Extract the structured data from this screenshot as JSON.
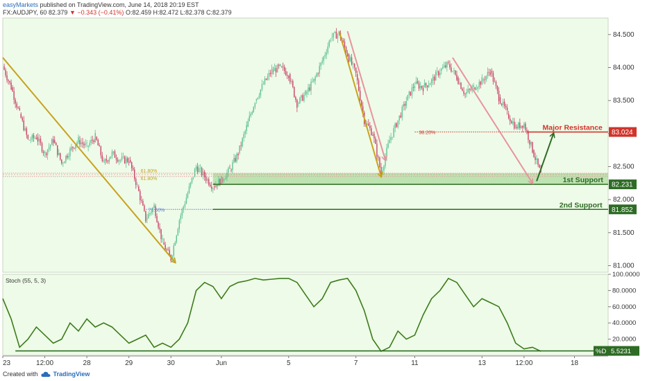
{
  "header": {
    "brand": "easyMarkets",
    "published": "published on TradingView.com, June 14, 2018 20:19 EST",
    "symbol": "FX:AUDJPY, 60",
    "last": "82.379",
    "change": "−0.343 (−0.41%)",
    "ohlc": "O:82.459 H:82.472 L:82.378 C:82.379"
  },
  "footer": {
    "created_with": "Created with",
    "brand": "TradingView"
  },
  "colors": {
    "background": "#eefbe8",
    "candle_up": "#5fc196",
    "candle_down": "#c9446a",
    "gold_arrow": "#c8a21e",
    "pink_arrow": "#e8939e",
    "resistance": "#d0342c",
    "support": "#2e6b25",
    "stoch_line": "#3c7a1a"
  },
  "chart_data": [
    {
      "type": "candlestick",
      "title": "",
      "ylim": [
        80.9,
        84.75
      ],
      "y_ticks": [
        "84.500",
        "84.000",
        "83.500",
        "83.000",
        "82.500",
        "82.000",
        "81.500",
        "81.000"
      ],
      "x_ticks": [
        "23",
        "12:00",
        "28",
        "29",
        "30",
        "Jun",
        "5",
        "7",
        "11",
        "13",
        "12:00",
        "18"
      ],
      "x_tick_positions": [
        0,
        5,
        10,
        15,
        20,
        26,
        34,
        42,
        49,
        57,
        62,
        68
      ],
      "x_range": [
        0,
        72
      ],
      "price_path": [
        [
          0,
          84.02
        ],
        [
          1,
          83.7
        ],
        [
          2,
          83.3
        ],
        [
          3,
          82.9
        ],
        [
          4,
          82.95
        ],
        [
          5,
          82.7
        ],
        [
          6,
          82.9
        ],
        [
          7,
          82.55
        ],
        [
          8,
          82.75
        ],
        [
          9,
          82.9
        ],
        [
          10,
          82.8
        ],
        [
          11,
          82.95
        ],
        [
          12,
          82.55
        ],
        [
          13,
          82.7
        ],
        [
          14,
          82.6
        ],
        [
          15,
          82.6
        ],
        [
          16,
          82.2
        ],
        [
          17,
          81.7
        ],
        [
          18,
          81.9
        ],
        [
          19,
          81.35
        ],
        [
          20,
          81.1
        ],
        [
          21,
          81.7
        ],
        [
          22,
          82.1
        ],
        [
          23,
          82.5
        ],
        [
          24,
          82.35
        ],
        [
          25,
          82.2
        ],
        [
          26,
          82.3
        ],
        [
          27,
          82.45
        ],
        [
          28,
          82.7
        ],
        [
          29,
          83.1
        ],
        [
          30,
          83.5
        ],
        [
          31,
          83.75
        ],
        [
          32,
          83.95
        ],
        [
          33,
          84.0
        ],
        [
          34,
          83.9
        ],
        [
          35,
          83.45
        ],
        [
          36,
          83.6
        ],
        [
          37,
          83.8
        ],
        [
          38,
          84.1
        ],
        [
          39,
          84.45
        ],
        [
          40,
          84.52
        ],
        [
          41,
          84.2
        ],
        [
          42,
          83.9
        ],
        [
          43,
          83.2
        ],
        [
          44,
          83.0
        ],
        [
          45,
          82.4
        ],
        [
          46,
          82.9
        ],
        [
          47,
          83.2
        ],
        [
          48,
          83.5
        ],
        [
          49,
          83.75
        ],
        [
          50,
          83.7
        ],
        [
          51,
          83.8
        ],
        [
          52,
          83.95
        ],
        [
          53,
          84.05
        ],
        [
          54,
          83.85
        ],
        [
          55,
          83.6
        ],
        [
          56,
          83.7
        ],
        [
          57,
          83.8
        ],
        [
          58,
          83.95
        ],
        [
          59,
          83.55
        ],
        [
          60,
          83.3
        ],
        [
          61,
          83.1
        ],
        [
          62,
          83.15
        ],
        [
          63,
          82.75
        ],
        [
          64,
          82.38
        ]
      ],
      "fib_levels": [
        {
          "label": "61.80%",
          "value": 82.4
        },
        {
          "label": "61.80%",
          "value": 82.35
        },
        {
          "label": "38.20%",
          "value": 83.024
        },
        {
          "label": "78.60%",
          "value": 81.852
        }
      ],
      "levels": [
        {
          "name": "Major Resistance",
          "value": 83.024,
          "price_label": "83.024"
        },
        {
          "name": "1st Support",
          "value": 82.231,
          "price_label": "82.231"
        },
        {
          "name": "2nd Support",
          "value": 81.852,
          "price_label": "81.852"
        }
      ],
      "last_price": 82.379,
      "arrows": [
        {
          "color": "gold",
          "from": [
            0,
            84.15
          ],
          "to": [
            20.5,
            81.05
          ]
        },
        {
          "color": "gold",
          "from": [
            40,
            84.55
          ],
          "to": [
            45,
            82.35
          ]
        },
        {
          "color": "pink",
          "from": [
            41,
            84.55
          ],
          "to": [
            45.5,
            82.6
          ]
        },
        {
          "color": "pink",
          "from": [
            53.5,
            84.15
          ],
          "to": [
            63,
            82.25
          ]
        },
        {
          "color": "green",
          "from": [
            63.5,
            82.28
          ],
          "to": [
            65.5,
            83.0
          ]
        }
      ]
    },
    {
      "type": "line",
      "title": "Stoch (55, 5, 3)",
      "series_name": "%D",
      "ylim": [
        0,
        100
      ],
      "y_ticks": [
        "100.0000",
        "80.0000",
        "60.0000",
        "40.0000",
        "20.0000"
      ],
      "current_value": "5.5231",
      "x": [
        0,
        1,
        2,
        3,
        4,
        5,
        6,
        7,
        8,
        9,
        10,
        11,
        12,
        13,
        14,
        15,
        16,
        17,
        18,
        19,
        20,
        21,
        22,
        23,
        24,
        25,
        26,
        27,
        28,
        29,
        30,
        31,
        32,
        33,
        34,
        35,
        36,
        37,
        38,
        39,
        40,
        41,
        42,
        43,
        44,
        45,
        46,
        47,
        48,
        49,
        50,
        51,
        52,
        53,
        54,
        55,
        56,
        57,
        58,
        59,
        60,
        61,
        62,
        63,
        64
      ],
      "values": [
        70,
        45,
        10,
        20,
        35,
        25,
        15,
        20,
        40,
        30,
        45,
        35,
        40,
        35,
        25,
        15,
        20,
        25,
        10,
        15,
        10,
        20,
        40,
        80,
        90,
        85,
        70,
        85,
        90,
        92,
        95,
        93,
        94,
        95,
        95,
        90,
        75,
        60,
        70,
        90,
        93,
        95,
        80,
        55,
        20,
        5,
        10,
        30,
        20,
        25,
        50,
        70,
        80,
        95,
        90,
        75,
        60,
        70,
        65,
        60,
        40,
        15,
        8,
        10,
        5
      ]
    }
  ]
}
